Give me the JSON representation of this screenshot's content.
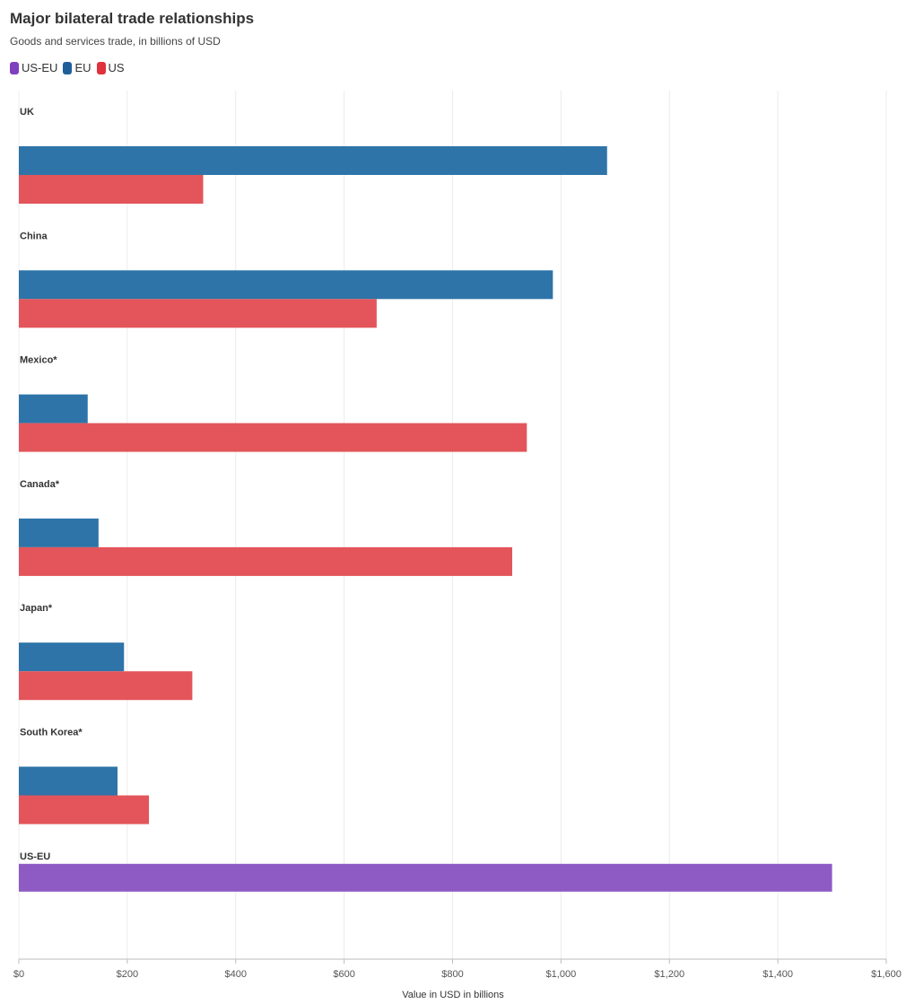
{
  "chart_data": {
    "type": "bar",
    "orientation": "horizontal",
    "title": "Major bilateral trade relationships",
    "subtitle": "Goods and services trade, in billions of USD",
    "xlabel": "Value in USD in billions",
    "xlim": [
      0,
      1600
    ],
    "xticks": [
      0,
      200,
      400,
      600,
      800,
      1000,
      1200,
      1400,
      1600
    ],
    "xtick_labels": [
      "$0",
      "$200",
      "$400",
      "$600",
      "$800",
      "$1,000",
      "$1,200",
      "$1,400",
      "$1,600"
    ],
    "grid": true,
    "legend_placement": "top-left",
    "legend": [
      {
        "name": "US-EU",
        "color": "#7f3fbf"
      },
      {
        "name": "EU",
        "color": "#1f5f99"
      },
      {
        "name": "US",
        "color": "#e0323c"
      }
    ],
    "categories": [
      "UK",
      "China",
      "Mexico*",
      "Canada*",
      "Japan*",
      "South Korea*",
      "US-EU"
    ],
    "series": [
      {
        "name": "US-EU",
        "color": "#8e5bc4",
        "values": [
          null,
          null,
          null,
          null,
          null,
          null,
          1500
        ]
      },
      {
        "name": "EU",
        "color": "#2e74a8",
        "values": [
          1085,
          985,
          127,
          147,
          194,
          182,
          null
        ]
      },
      {
        "name": "US",
        "color": "#e3555a",
        "values": [
          340,
          660,
          937,
          910,
          320,
          240,
          null
        ]
      }
    ]
  }
}
